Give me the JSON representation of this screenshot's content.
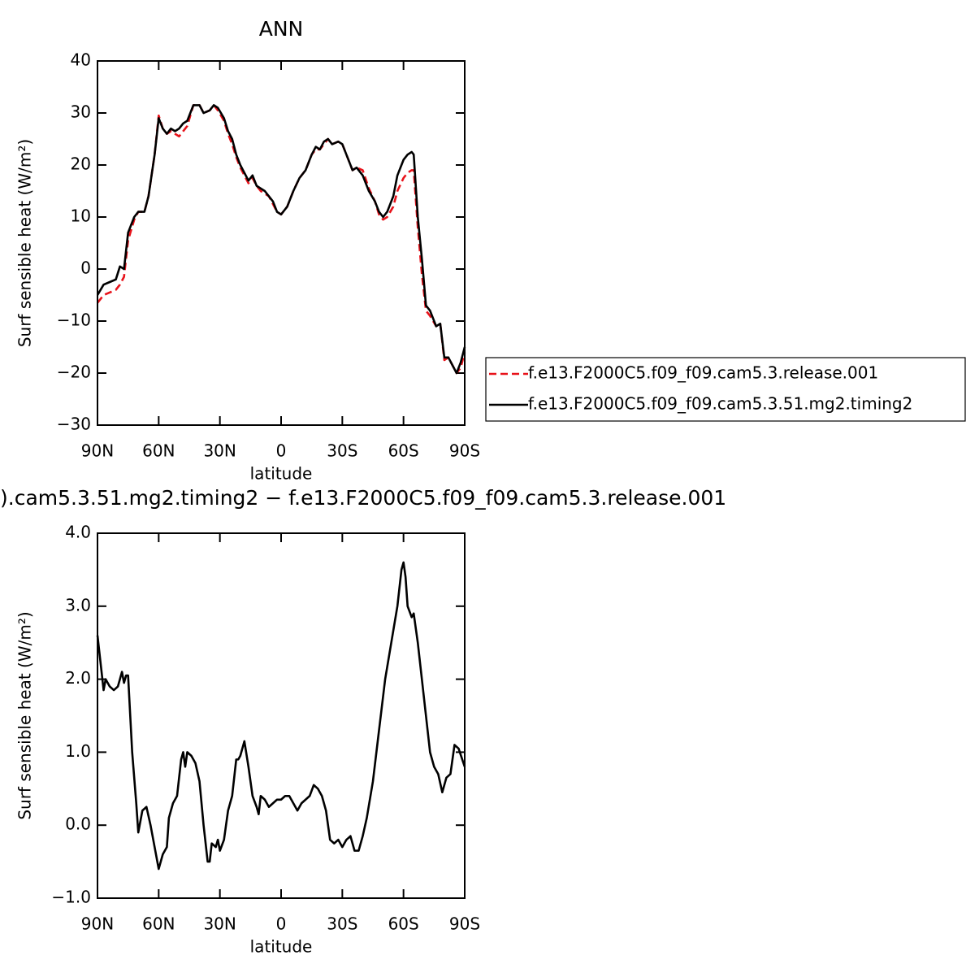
{
  "chart_data": [
    {
      "type": "line",
      "title": "ANN",
      "xlabel": "latitude",
      "ylabel": "Surf sensible heat (W/m²)",
      "xlim": [
        90,
        -90
      ],
      "xticks": [
        {
          "value": 90,
          "label": "90N"
        },
        {
          "value": 60,
          "label": "60N"
        },
        {
          "value": 30,
          "label": "30N"
        },
        0,
        {
          "value": -30,
          "label": "30S"
        },
        {
          "value": -60,
          "label": "60S"
        },
        {
          "value": -90,
          "label": "90S"
        }
      ],
      "ylim": [
        -30,
        40
      ],
      "yticks": [
        {
          "value": -30,
          "label": "−30"
        },
        {
          "value": -20,
          "label": "−20"
        },
        {
          "value": -10,
          "label": "−10"
        },
        0,
        10,
        20,
        30,
        40
      ],
      "legend": "right",
      "x": [
        90,
        87,
        84,
        81,
        79,
        77,
        75,
        72,
        70,
        67,
        65,
        62,
        60,
        58,
        56,
        54,
        52,
        50,
        48,
        46,
        43,
        40,
        38,
        35,
        33,
        31,
        28,
        26,
        24,
        22,
        20,
        18,
        16,
        14,
        12,
        10,
        8,
        6,
        4,
        2,
        0,
        -3,
        -6,
        -9,
        -12,
        -15,
        -17,
        -19,
        -21,
        -23,
        -25,
        -28,
        -30,
        -32,
        -35,
        -37,
        -40,
        -43,
        -46,
        -48,
        -50,
        -52,
        -55,
        -57,
        -60,
        -62,
        -64,
        -65,
        -67,
        -69,
        -71,
        -73,
        -76,
        -78,
        -80,
        -82,
        -84,
        -86,
        -88,
        -90
      ],
      "series": [
        {
          "name": "f.e13.F2000C5.f09_f09.cam5.3.release.001",
          "color": "#e8121a",
          "dash": "dashed",
          "values": [
            -6.5,
            -5,
            -4.5,
            -4,
            -3,
            -1.5,
            5.5,
            9.5,
            11,
            11,
            14,
            22,
            29.5,
            27,
            26,
            26.5,
            26,
            25.5,
            26.5,
            27.5,
            31.5,
            31.5,
            30,
            30.5,
            31.5,
            30.5,
            28.5,
            26,
            24,
            21.5,
            19.5,
            18,
            16.5,
            17.5,
            16,
            15,
            14.5,
            14,
            12.5,
            11,
            10.5,
            12,
            15,
            17.5,
            19,
            22,
            23,
            23,
            24,
            25,
            24,
            24.5,
            24,
            22,
            19,
            19.5,
            19,
            15.5,
            13,
            10.5,
            9.5,
            10,
            12,
            15,
            17.5,
            18.5,
            19,
            19,
            8,
            -1,
            -8,
            -9,
            -11,
            -10.5,
            -17.5,
            -17,
            -18.5,
            -20,
            -19,
            -16
          ]
        },
        {
          "name": "f.e13.F2000C5.f09_f09.cam5.3.51.mg2.timing2",
          "color": "#000000",
          "dash": "solid",
          "values": [
            -5,
            -3,
            -2.5,
            -2,
            0.5,
            0,
            7,
            10,
            11,
            11,
            14,
            22,
            29,
            27,
            26,
            27,
            26.5,
            27,
            28,
            28.5,
            31.5,
            31.5,
            30,
            30.5,
            31.5,
            31,
            29,
            26.5,
            25,
            22,
            20,
            18.5,
            17,
            18,
            16,
            15.5,
            15,
            14,
            13,
            11,
            10.5,
            12,
            15,
            17.5,
            19,
            22,
            23.5,
            23,
            24.5,
            25,
            24,
            24.5,
            24,
            22,
            19,
            19.5,
            18,
            15,
            13,
            11,
            10,
            11,
            14,
            18,
            21,
            22,
            22.5,
            22,
            10,
            2,
            -7,
            -8,
            -11,
            -10.5,
            -17,
            -17,
            -18.5,
            -20,
            -18,
            -15
          ]
        }
      ]
    },
    {
      "type": "line",
      "title": ").cam5.3.51.mg2.timing2 − f.e13.F2000C5.f09_f09.cam5.3.release.001",
      "xlabel": "latitude",
      "ylabel": "Surf sensible heat (W/m²)",
      "xlim": [
        90,
        -90
      ],
      "xticks": [
        {
          "value": 90,
          "label": "90N"
        },
        {
          "value": 60,
          "label": "60N"
        },
        {
          "value": 30,
          "label": "30N"
        },
        0,
        {
          "value": -30,
          "label": "30S"
        },
        {
          "value": -60,
          "label": "60S"
        },
        {
          "value": -90,
          "label": "90S"
        }
      ],
      "ylim": [
        -1,
        4
      ],
      "yticks": [
        {
          "value": -1,
          "label": "−1.0"
        },
        {
          "value": 0,
          "label": "0.0"
        },
        {
          "value": 1,
          "label": "1.0"
        },
        {
          "value": 2,
          "label": "2.0"
        },
        {
          "value": 3,
          "label": "3.0"
        },
        {
          "value": 4,
          "label": "4.0"
        }
      ],
      "color": "#000000",
      "x": [
        90,
        88,
        87,
        86,
        84,
        82,
        80,
        78,
        77,
        76,
        75,
        73,
        71,
        70,
        68,
        66,
        64,
        62,
        60,
        58,
        56,
        55,
        53,
        51,
        49,
        48,
        47,
        46,
        44,
        42,
        40,
        38,
        36,
        35,
        34,
        32,
        31,
        30,
        28,
        26,
        24,
        22,
        21,
        20,
        18,
        16,
        14,
        12,
        11,
        10,
        8,
        6,
        4,
        2,
        0,
        -2,
        -4,
        -6,
        -8,
        -10,
        -12,
        -14,
        -16,
        -18,
        -20,
        -22,
        -24,
        -26,
        -28,
        -30,
        -32,
        -34,
        -36,
        -38,
        -40,
        -42,
        -45,
        -48,
        -51,
        -54,
        -57,
        -59,
        -60,
        -61,
        -62,
        -64,
        -65,
        -67,
        -69,
        -71,
        -73,
        -75,
        -77,
        -79,
        -81,
        -83,
        -85,
        -87,
        -90
      ],
      "values": [
        2.6,
        2.1,
        1.85,
        2.0,
        1.9,
        1.85,
        1.9,
        2.1,
        1.95,
        2.05,
        2.05,
        1.0,
        0.3,
        -0.1,
        0.2,
        0.25,
        0.0,
        -0.3,
        -0.6,
        -0.4,
        -0.3,
        0.1,
        0.3,
        0.4,
        0.9,
        1.0,
        0.8,
        1.0,
        0.95,
        0.85,
        0.6,
        0.0,
        -0.5,
        -0.5,
        -0.25,
        -0.3,
        -0.2,
        -0.35,
        -0.2,
        0.2,
        0.4,
        0.9,
        0.9,
        0.95,
        1.15,
        0.8,
        0.4,
        0.25,
        0.15,
        0.4,
        0.35,
        0.25,
        0.3,
        0.35,
        0.35,
        0.4,
        0.4,
        0.3,
        0.2,
        0.3,
        0.35,
        0.4,
        0.55,
        0.5,
        0.4,
        0.2,
        -0.2,
        -0.25,
        -0.2,
        -0.3,
        -0.2,
        -0.15,
        -0.35,
        -0.35,
        -0.15,
        0.1,
        0.6,
        1.3,
        2.0,
        2.5,
        3.0,
        3.5,
        3.6,
        3.4,
        3.0,
        2.85,
        2.9,
        2.5,
        2.0,
        1.5,
        1.0,
        0.8,
        0.7,
        0.45,
        0.65,
        0.7,
        1.1,
        1.05,
        0.8
      ]
    }
  ]
}
